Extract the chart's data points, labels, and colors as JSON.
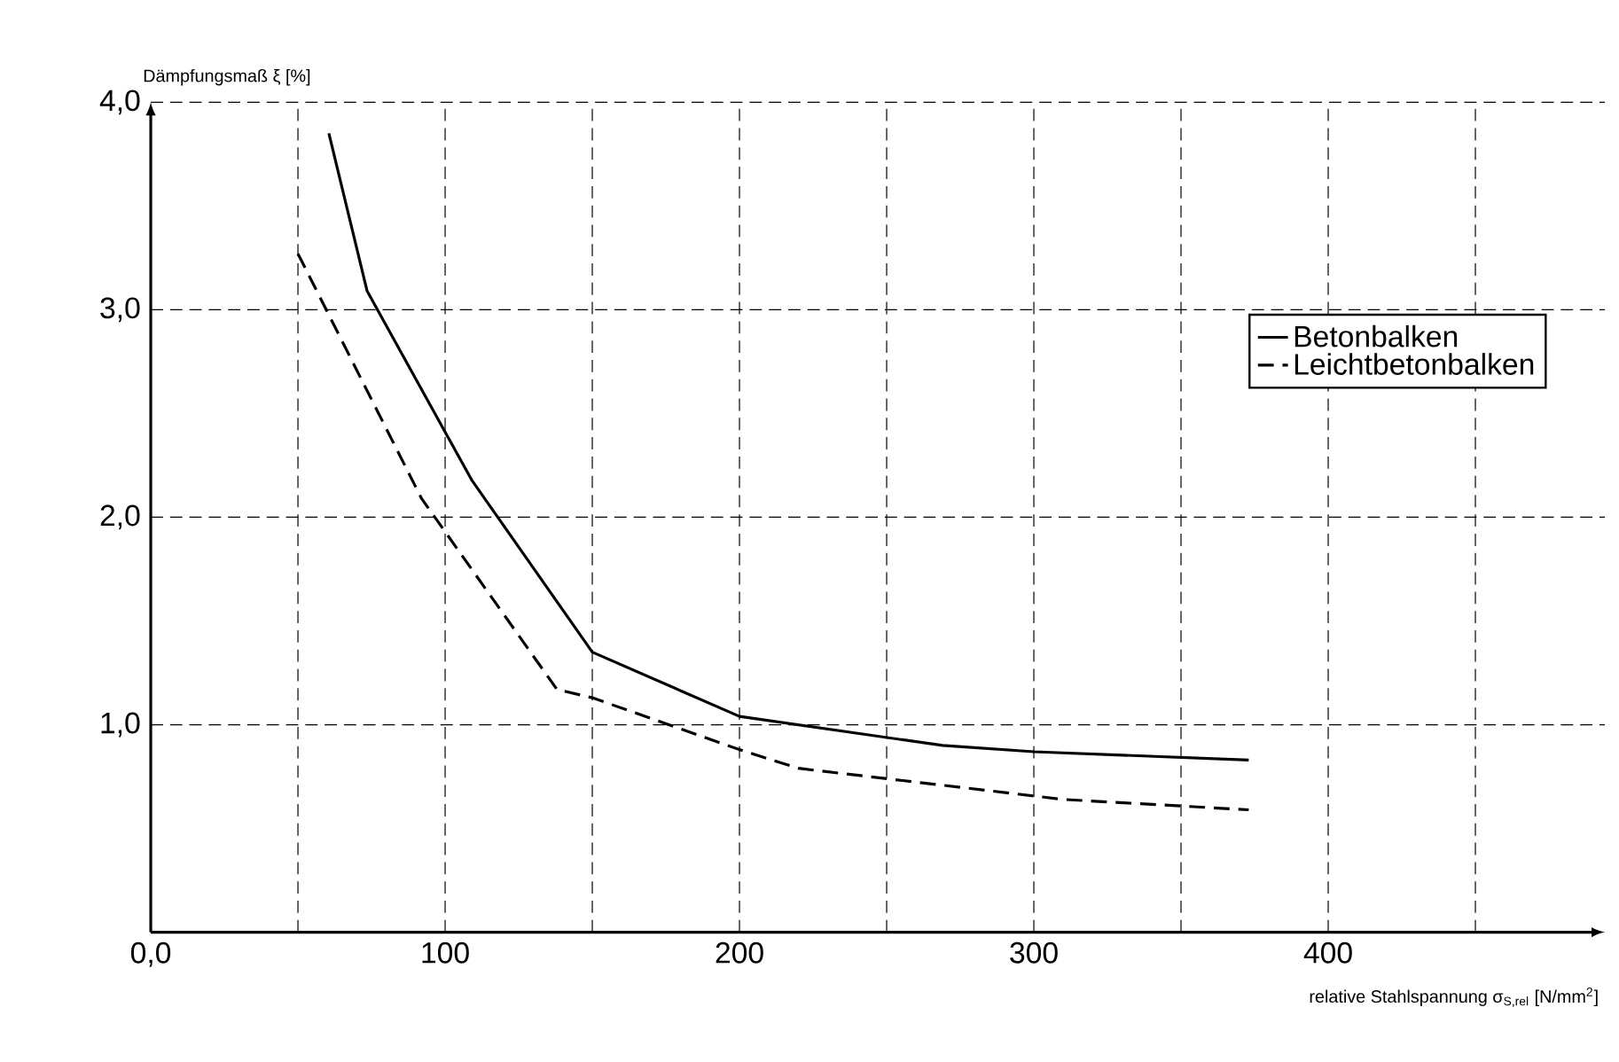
{
  "chart_data": {
    "type": "line",
    "xlabel": "relative Stahlspannung σ$_{S,rel}$ [N/mm$^{2}$]",
    "ylabel": "Dämpfungsmaß ξ [%]",
    "xlim": [
      0,
      494
    ],
    "ylim": [
      0,
      4
    ],
    "xticks": [
      {
        "value": 0,
        "label": "0,0"
      },
      {
        "value": 50,
        "label": null
      },
      100,
      {
        "value": 150,
        "label": null
      },
      200,
      {
        "value": 250,
        "label": null
      },
      300,
      {
        "value": 350,
        "label": null
      },
      400,
      {
        "value": 450,
        "label": null
      }
    ],
    "yticks": [
      {
        "value": 1,
        "label": "1,0"
      },
      {
        "value": 2,
        "label": "2,0"
      },
      {
        "value": 3,
        "label": "3,0"
      },
      {
        "value": 4,
        "label": "4,0"
      }
    ],
    "grid": true,
    "legend": "right",
    "marker": "none",
    "series": [
      {
        "name": "Betonbalken",
        "color": "#000000",
        "line_style": "solid",
        "x": [
          60.5,
          73.5,
          109,
          150,
          200,
          269,
          300,
          373
        ],
        "values": [
          3.85,
          3.09,
          2.18,
          1.35,
          1.04,
          0.9,
          0.87,
          0.83
        ]
      },
      {
        "name": "Leichtbetonbalken",
        "color": "#000000",
        "line_style": "dashed",
        "x": [
          50,
          92,
          138,
          150,
          200,
          220,
          310,
          373
        ],
        "values": [
          3.27,
          2.09,
          1.17,
          1.13,
          0.88,
          0.79,
          0.64,
          0.59
        ]
      }
    ]
  }
}
